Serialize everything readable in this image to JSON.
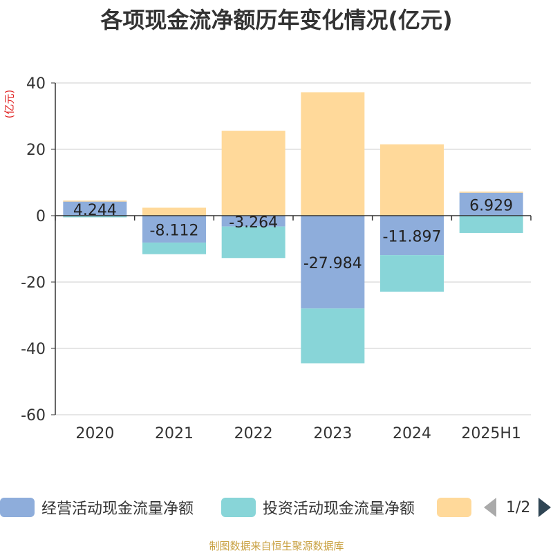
{
  "chart_data": {
    "type": "bar",
    "title": "各项现金流净额历年变化情况(亿元)",
    "ylabel": "(亿元)",
    "ylim": [
      -60,
      40
    ],
    "yticks": [
      40,
      20,
      0,
      -20,
      -40,
      -60
    ],
    "ytick_labels": [
      "40",
      "20",
      "0",
      "-20",
      "-40",
      "-60"
    ],
    "categories": [
      "2020",
      "2021",
      "2022",
      "2023",
      "2024",
      "2025H1"
    ],
    "stacked": true,
    "grid": true,
    "legend_position": "bottom",
    "series": [
      {
        "name": "经营活动现金流量净额",
        "color": "#8eaddb",
        "values": [
          4.244,
          -8.112,
          -3.264,
          -27.984,
          -11.897,
          6.929
        ],
        "data_labels": [
          "4.244",
          "-8.112",
          "-3.264",
          "-27.984",
          "-11.897",
          "6.929"
        ]
      },
      {
        "name": "投资活动现金流量净额",
        "color": "#88d5d8",
        "values": [
          -0.5,
          -3.5,
          -9.5,
          -16.5,
          -11.0,
          -5.2
        ]
      },
      {
        "name": "",
        "color": "#ffd99a",
        "values": [
          0.3,
          2.4,
          25.6,
          37.2,
          21.5,
          0.3
        ]
      }
    ]
  },
  "legend": {
    "items": [
      {
        "label": "经营活动现金流量净额",
        "color": "#8eaddb"
      },
      {
        "label": "投资活动现金流量净额",
        "color": "#88d5d8"
      },
      {
        "label": "",
        "color": "#ffd99a"
      }
    ],
    "page_text": "1/2"
  },
  "footer": {
    "source": "制图数据来自恒生聚源数据库"
  }
}
